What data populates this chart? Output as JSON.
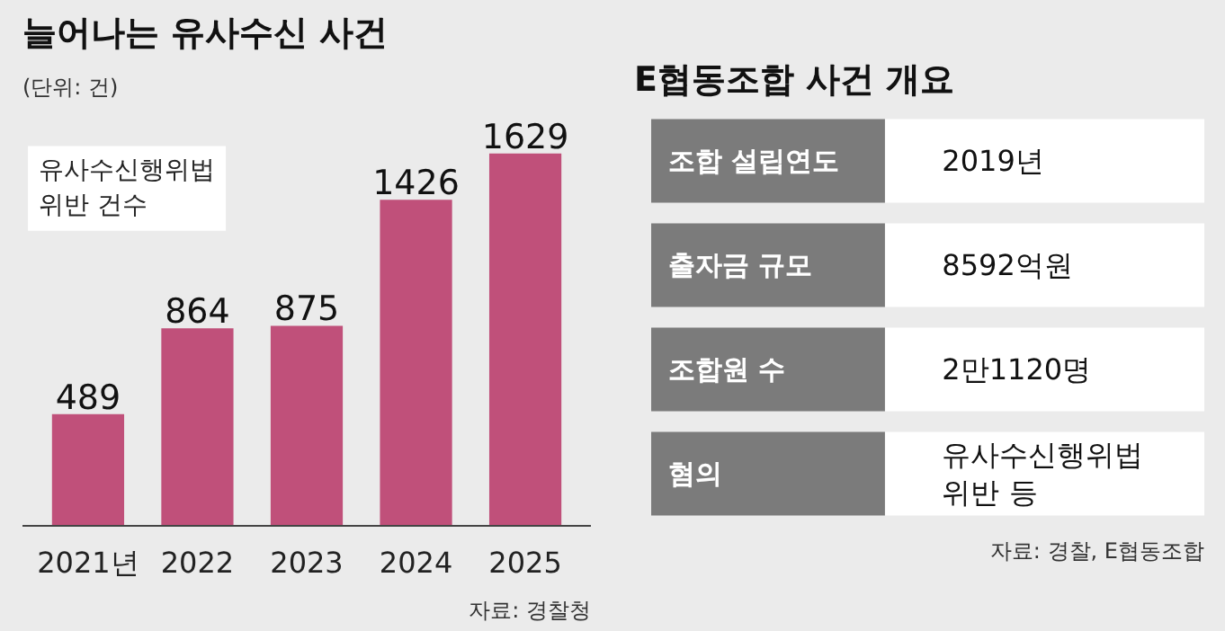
{
  "chart_data": [
    {
      "type": "bar",
      "title": "늘어나는 유사수신 사건",
      "subtitle": "(단위: 건)",
      "categories": [
        "2021년",
        "2022",
        "2023",
        "2024",
        "2025"
      ],
      "values": [
        489,
        864,
        875,
        1426,
        1629
      ],
      "color": "#c0507a",
      "data_labels": true,
      "annotations": [
        "유사수신행위법\n위반 건수",
        "자료: 경찰청"
      ]
    },
    {
      "type": "other",
      "title": "E협동조합 사건 개요",
      "categories": [
        "조합 설립연도",
        "출자금 규모",
        "조합원 수",
        "혐의"
      ],
      "annotations": [
        "2019년",
        "8592억원",
        "2만1120명",
        "유사수신행위법\n위반 등",
        "자료: 경찰, E협동조합"
      ]
    }
  ]
}
